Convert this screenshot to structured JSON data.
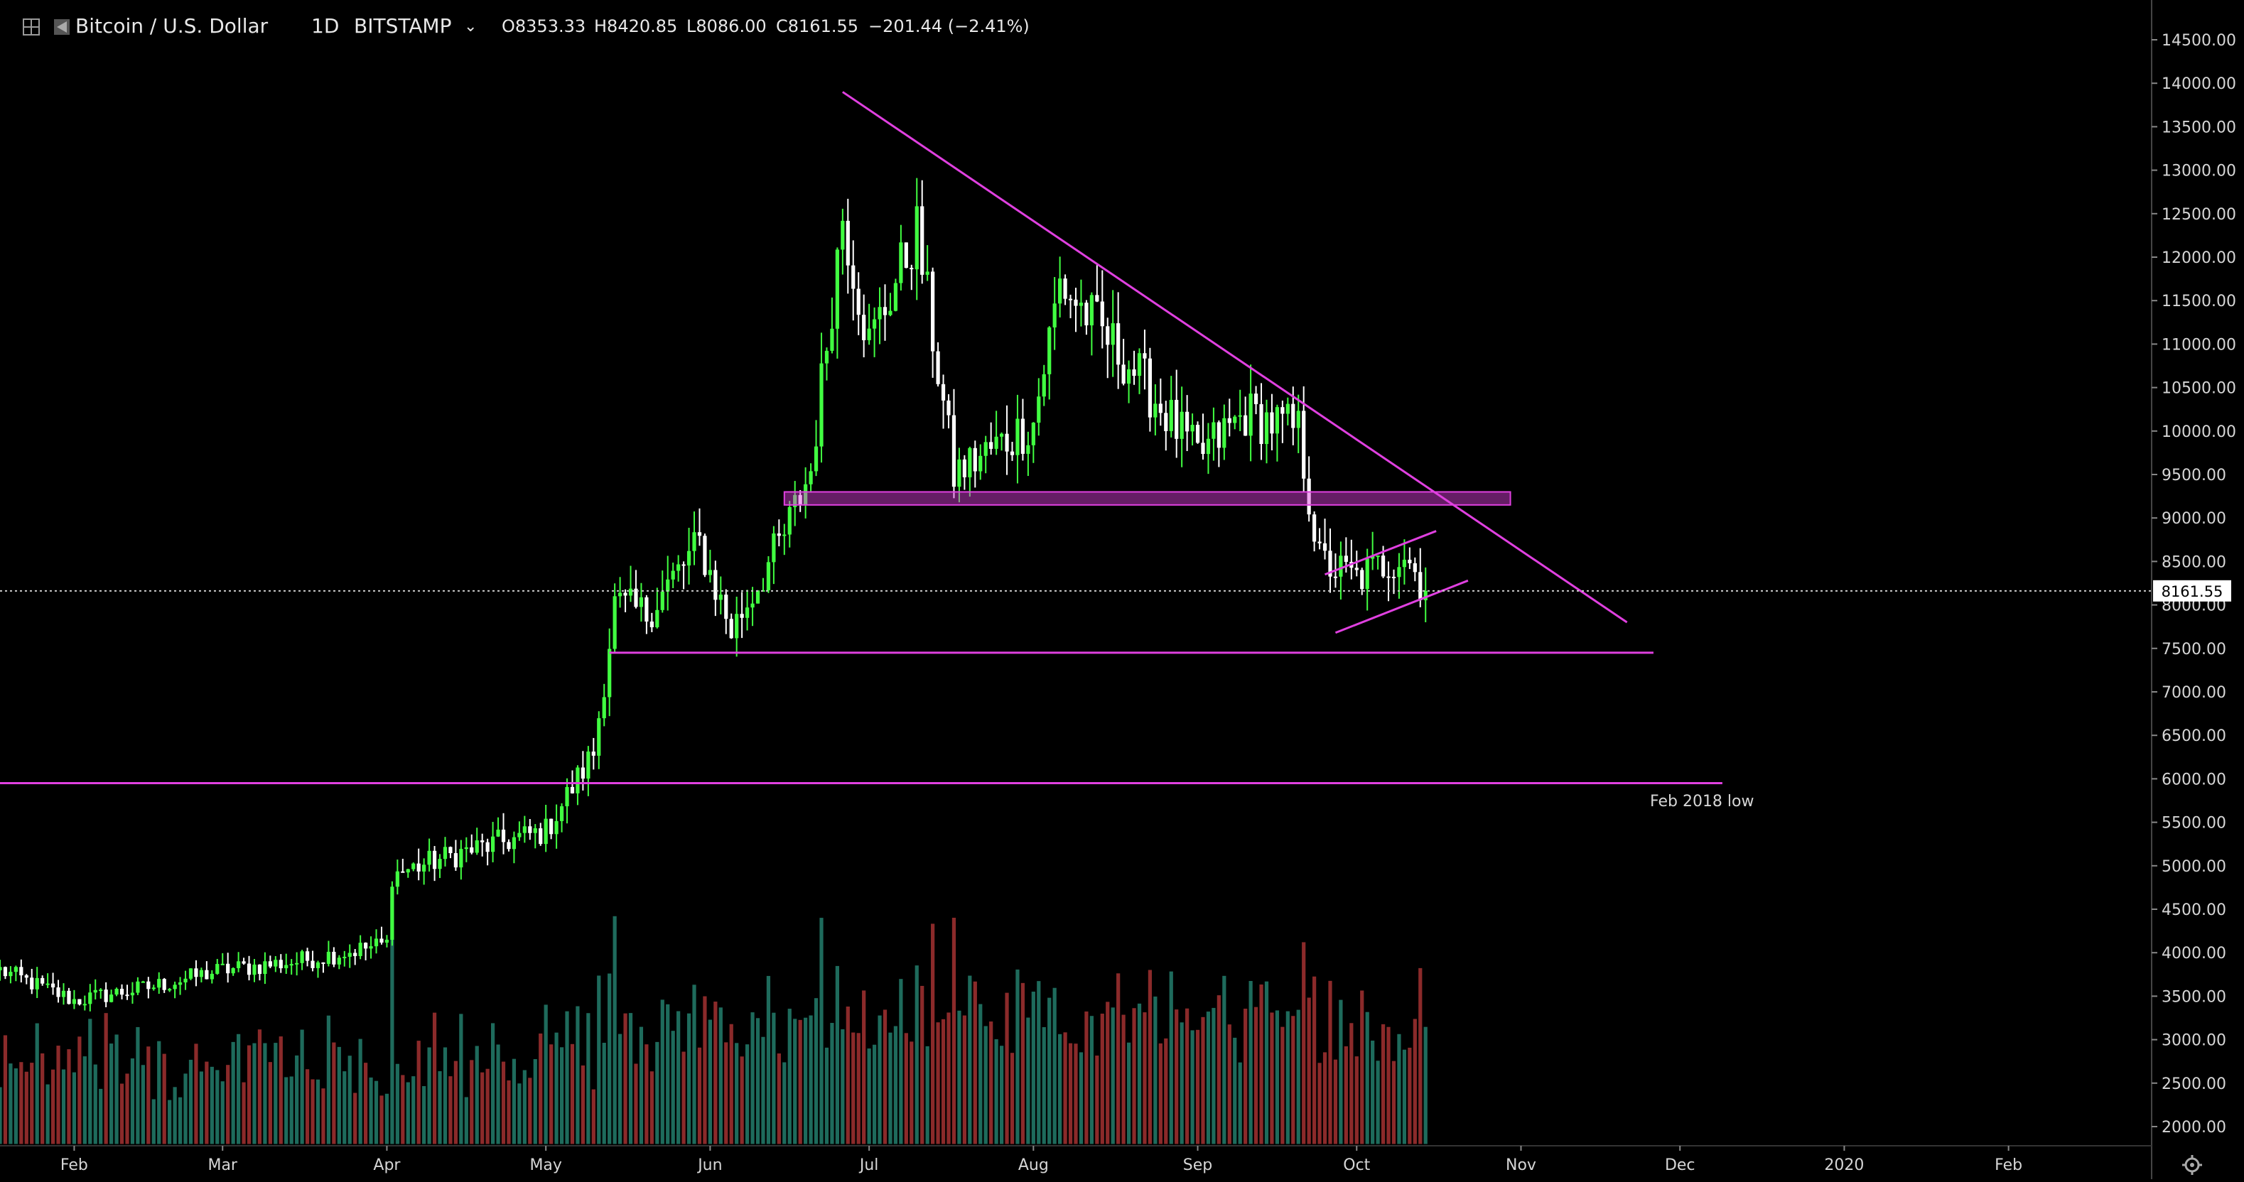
{
  "header": {
    "symbol": "Bitcoin / U.S. Dollar",
    "interval": "1D",
    "exchange": "BITSTAMP",
    "open": "O8353.33",
    "high": "H8420.85",
    "low": "L8086.00",
    "close": "C8161.55",
    "change": "−201.44 (−2.41%)"
  },
  "colors": {
    "background": "#000000",
    "up": "#41ff41",
    "down": "#ffffff",
    "vol_up": "#1e6b5c",
    "vol_down": "#8b2a2a",
    "drawing": "#e040e0",
    "axis_text": "#d6d6d6"
  },
  "annotation": "Feb 2018 low",
  "last_price_label": "8161.55",
  "chart_data": {
    "type": "candlestick",
    "title": "Bitcoin / U.S. Dollar 1D BITSTAMP",
    "x_range": [
      "2019-01-18",
      "2020-02-28"
    ],
    "ylim": [
      1800,
      14700
    ],
    "y_ticks": [
      2000,
      2500,
      3000,
      3500,
      4000,
      4500,
      5000,
      5500,
      6000,
      6500,
      7000,
      7500,
      8000,
      8500,
      9000,
      9500,
      10000,
      10500,
      11000,
      11500,
      12000,
      12500,
      13000,
      13500,
      14000,
      14500
    ],
    "x_ticks": [
      {
        "label": "Feb",
        "date": "2019-02-01"
      },
      {
        "label": "Mar",
        "date": "2019-03-01"
      },
      {
        "label": "Apr",
        "date": "2019-04-01"
      },
      {
        "label": "May",
        "date": "2019-05-01"
      },
      {
        "label": "Jun",
        "date": "2019-06-01"
      },
      {
        "label": "Jul",
        "date": "2019-07-01"
      },
      {
        "label": "Aug",
        "date": "2019-08-01"
      },
      {
        "label": "Sep",
        "date": "2019-09-01"
      },
      {
        "label": "Oct",
        "date": "2019-10-01"
      },
      {
        "label": "Nov",
        "date": "2019-11-01"
      },
      {
        "label": "Dec",
        "date": "2019-12-01"
      },
      {
        "label": "2020",
        "date": "2020-01-01"
      },
      {
        "label": "Feb",
        "date": "2020-02-01"
      }
    ],
    "last_price": 8161.55,
    "series": [
      {
        "name": "price",
        "dates": [
          "2019-01-18",
          "2019-02-01",
          "2019-02-15",
          "2019-03-01",
          "2019-03-15",
          "2019-04-01",
          "2019-04-02",
          "2019-04-15",
          "2019-05-01",
          "2019-05-10",
          "2019-05-14",
          "2019-05-20",
          "2019-05-30",
          "2019-06-05",
          "2019-06-15",
          "2019-06-20",
          "2019-06-26",
          "2019-07-01",
          "2019-07-10",
          "2019-07-17",
          "2019-08-01",
          "2019-08-06",
          "2019-08-20",
          "2019-09-01",
          "2019-09-10",
          "2019-09-20",
          "2019-09-24",
          "2019-10-01",
          "2019-10-10",
          "2019-10-14"
        ],
        "close": [
          3800,
          3450,
          3600,
          3800,
          3900,
          4100,
          4900,
          5150,
          5400,
          6300,
          8000,
          7900,
          8700,
          7700,
          8800,
          9550,
          12500,
          11000,
          12300,
          9500,
          10100,
          11700,
          10700,
          9700,
          10200,
          10000,
          8500,
          8300,
          8600,
          8161.55
        ]
      }
    ],
    "volume_range": [
      1800,
      5100
    ],
    "drawings": [
      {
        "type": "trendline",
        "from": {
          "date": "2019-06-26",
          "price": 13900
        },
        "to": {
          "date": "2019-11-21",
          "price": 7800
        }
      },
      {
        "type": "horizontal",
        "date_range": [
          "2019-05-13",
          "2019-11-26"
        ],
        "price": 7450
      },
      {
        "type": "horizontal",
        "date_range": [
          "2019-01-18",
          "2019-12-09"
        ],
        "price": 5950,
        "label": "Feb 2018 low"
      },
      {
        "type": "zone",
        "date_range": [
          "2019-06-15",
          "2019-10-30"
        ],
        "price_range": [
          9150,
          9300
        ]
      },
      {
        "type": "channel",
        "upper": {
          "from": {
            "date": "2019-09-25",
            "price": 8350
          },
          "to": {
            "date": "2019-10-16",
            "price": 8850
          }
        },
        "lower": {
          "from": {
            "date": "2019-09-27",
            "price": 7680
          },
          "to": {
            "date": "2019-10-22",
            "price": 8280
          }
        }
      }
    ]
  }
}
